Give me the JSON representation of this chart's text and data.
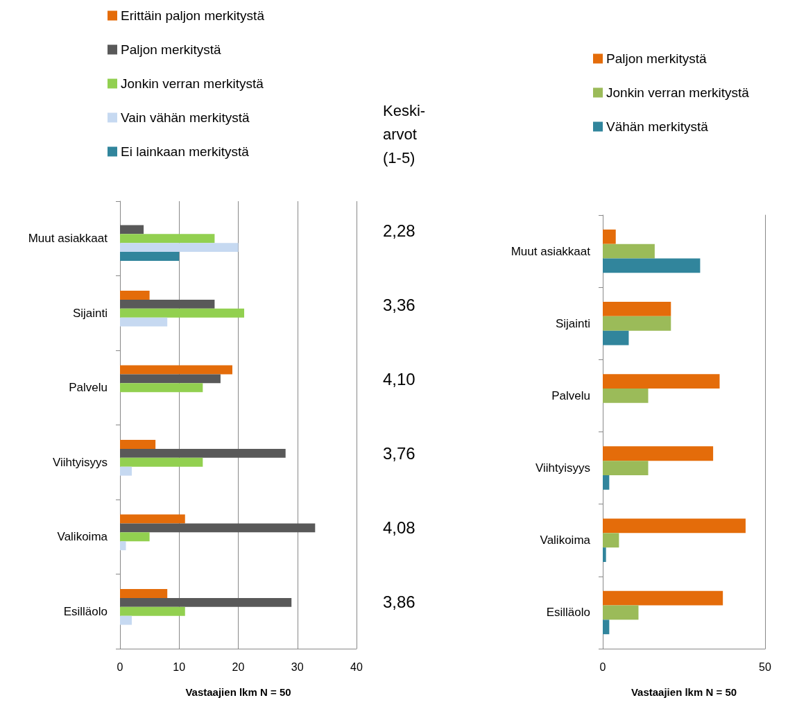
{
  "chart_data": [
    {
      "type": "bar",
      "orientation": "horizontal",
      "xlabel": "Vastaajien lkm N = 50",
      "categories": [
        "Muut asiakkaat",
        "Sijainti",
        "Palvelu",
        "Viihtyisyys",
        "Valikoima",
        "Esilläolo"
      ],
      "series": [
        {
          "name": "Erittäin paljon merkitystä",
          "color": "#e46c0a",
          "values": [
            0,
            5,
            19,
            6,
            11,
            8
          ]
        },
        {
          "name": "Paljon merkitystä",
          "color": "#595959",
          "values": [
            4,
            16,
            17,
            28,
            33,
            29
          ]
        },
        {
          "name": "Jonkin verran merkitystä",
          "color": "#92d050",
          "values": [
            16,
            21,
            14,
            14,
            5,
            11
          ]
        },
        {
          "name": "Vain vähän merkitystä",
          "color": "#c6d9f1",
          "values": [
            20,
            8,
            0,
            2,
            1,
            2
          ]
        },
        {
          "name": "Ei lainkaan merkitystä",
          "color": "#31859c",
          "values": [
            10,
            0,
            0,
            0,
            0,
            0
          ]
        }
      ],
      "xlim": [
        0,
        40
      ],
      "xticks": [
        0,
        10,
        20,
        30,
        40
      ],
      "grid": "x",
      "legend": "top left"
    },
    {
      "type": "other",
      "title": "Keski-arvot (1-5)",
      "annotations": [
        "2,28",
        "3,36",
        "4,10",
        "3,76",
        "4,08",
        "3,86"
      ]
    },
    {
      "type": "bar",
      "orientation": "horizontal",
      "xlabel": "Vastaajien lkm N = 50",
      "categories": [
        "Muut asiakkaat",
        "Sijainti",
        "Palvelu",
        "Viihtyisyys",
        "Valikoima",
        "Esilläolo"
      ],
      "series": [
        {
          "name": "Paljon merkitystä",
          "color": "#e46c0a",
          "values": [
            4,
            21,
            36,
            34,
            44,
            37
          ]
        },
        {
          "name": "Jonkin verran merkitystä",
          "color": "#9bbb59",
          "values": [
            16,
            21,
            14,
            14,
            5,
            11
          ]
        },
        {
          "name": "Vähän merkitystä",
          "color": "#31859c",
          "values": [
            30,
            8,
            0,
            2,
            1,
            2
          ]
        }
      ],
      "xlim": [
        0,
        50
      ],
      "xticks": [
        0,
        50
      ],
      "legend": "top"
    }
  ]
}
